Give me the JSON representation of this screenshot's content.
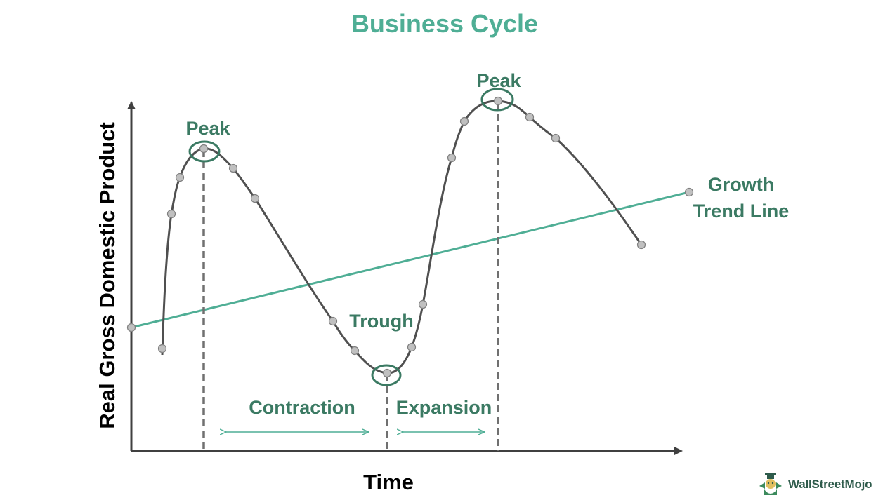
{
  "title": "Business Cycle",
  "axes": {
    "x_label": "Time",
    "y_label": "Real Gross Domestic Product"
  },
  "labels": {
    "peak_1": "Peak",
    "peak_2": "Peak",
    "trough": "Trough",
    "contraction": "Contraction",
    "expansion": "Expansion",
    "trend_line_1": "Growth",
    "trend_line_2": "Trend Line"
  },
  "logo": {
    "text": "WallStreetMojo"
  },
  "colors": {
    "title": "#4fae95",
    "label": "#3b7a63",
    "trend_line": "#4fae95",
    "curve": "#505050",
    "marker_fill": "#c0c0c0",
    "marker_stroke": "#7f7f7f",
    "axis": "#404040"
  }
}
